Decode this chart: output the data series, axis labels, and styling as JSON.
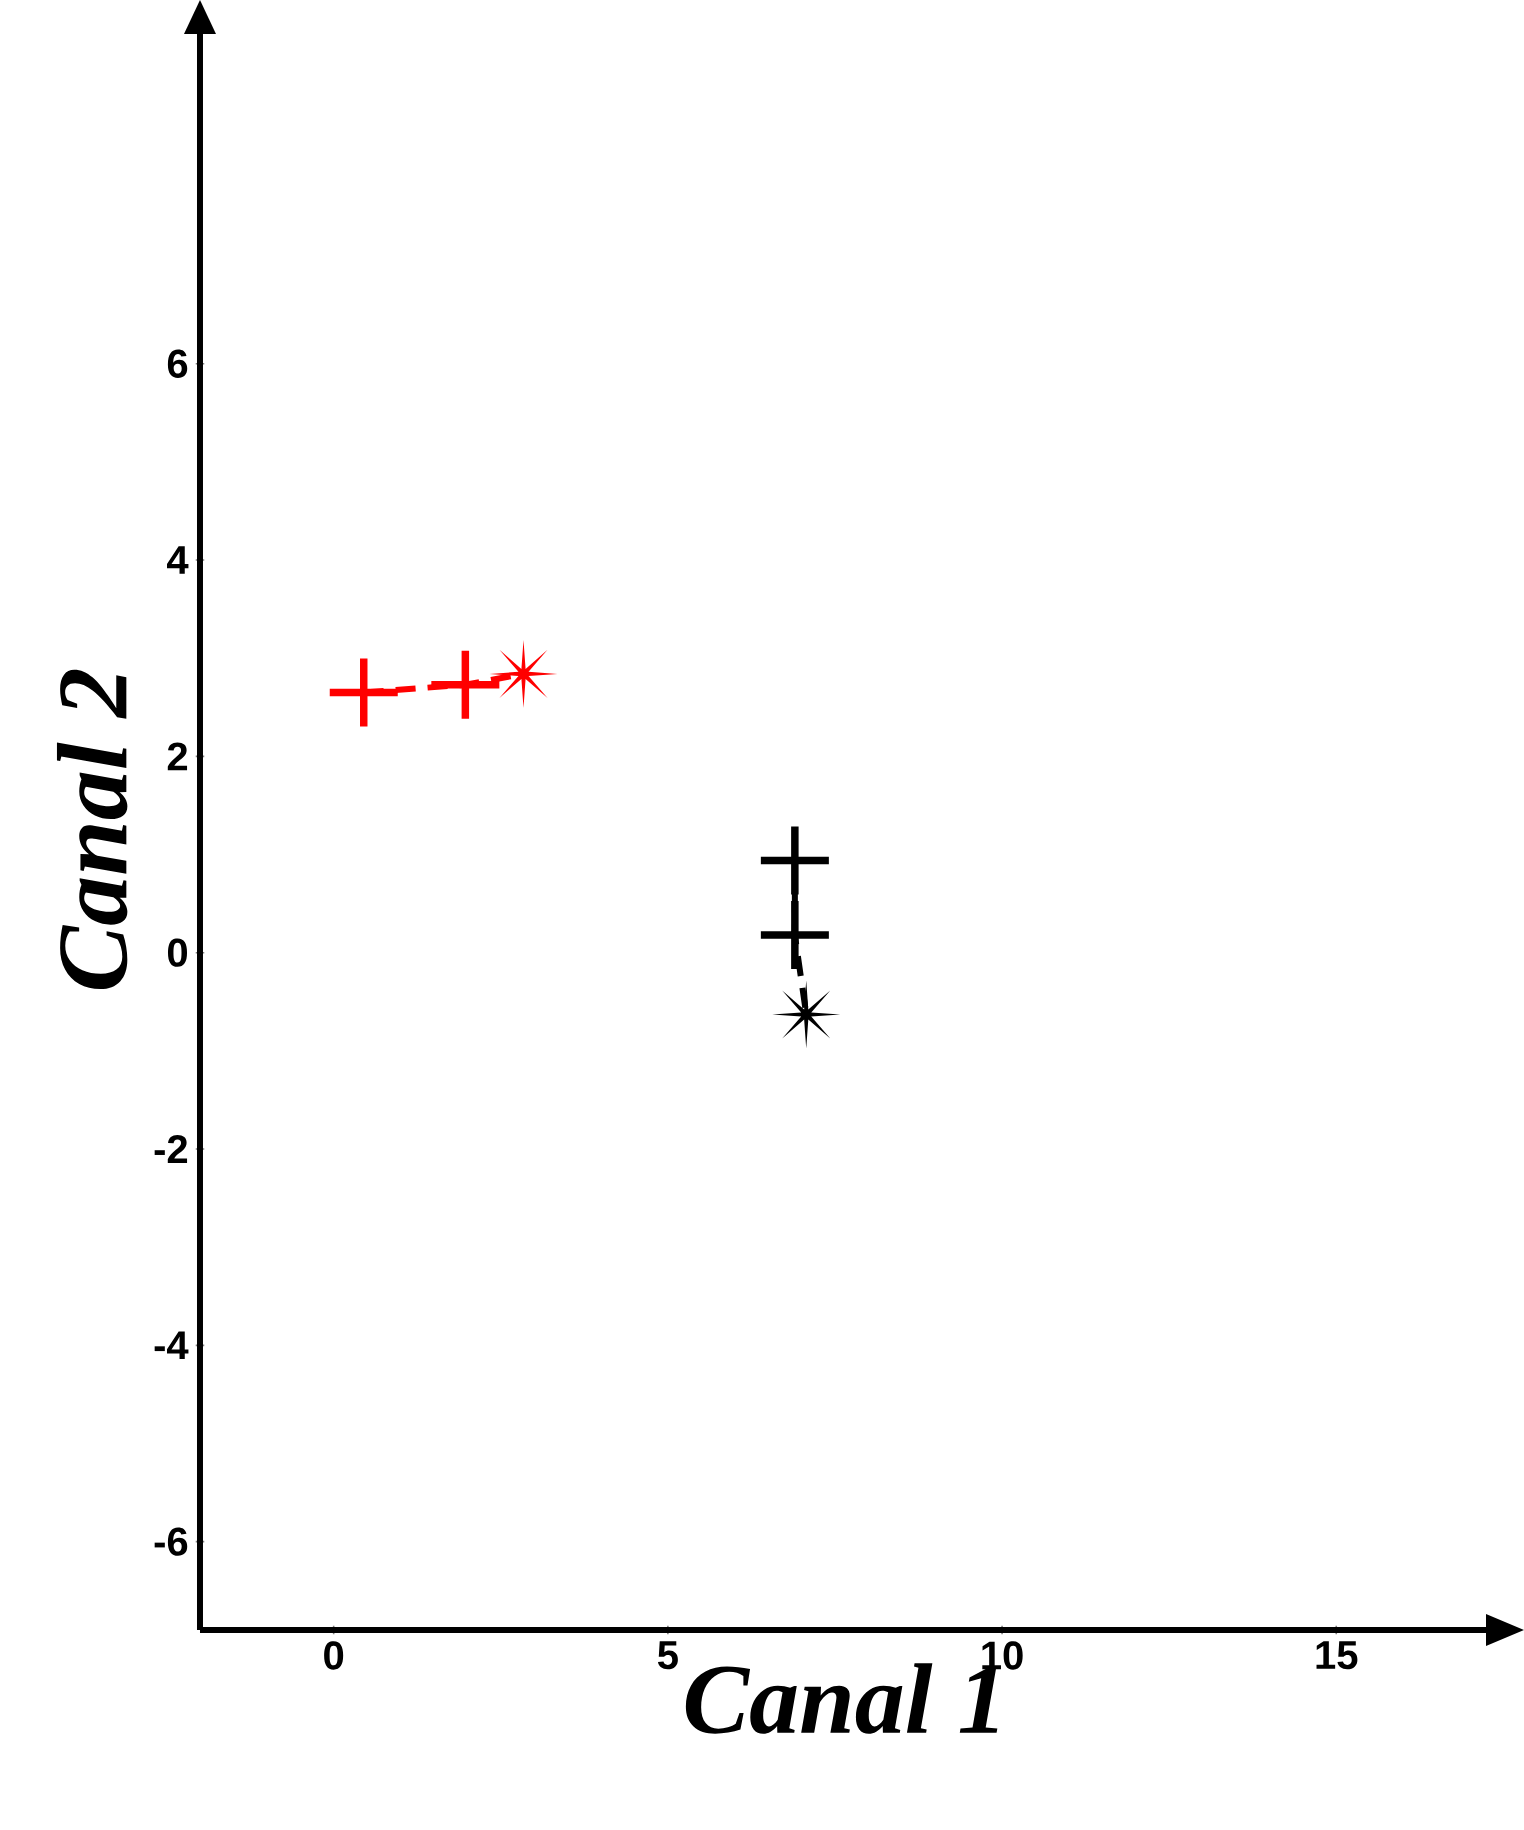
{
  "chart_data": {
    "type": "scatter",
    "xlabel": "Canal 1",
    "ylabel": "Canal 2",
    "xlim": [
      -2,
      17.3
    ],
    "ylim": [
      -6.9,
      9.4
    ],
    "xticks": [
      0,
      5,
      10,
      15
    ],
    "yticks": [
      -6,
      -4,
      -2,
      0,
      2,
      4,
      6
    ],
    "series": [
      {
        "type": "line",
        "color": "#ff0000",
        "marker": "none",
        "line_style": "dashed",
        "x": [
          0.45,
          1.97,
          2.84
        ],
        "values": [
          2.65,
          2.73,
          2.84
        ]
      },
      {
        "color": "#ff0000",
        "marker": "cross",
        "x": [
          0.45,
          1.97
        ],
        "values": [
          2.65,
          2.73
        ]
      },
      {
        "color": "#ff0000",
        "marker": "star",
        "x": [
          2.84
        ],
        "values": [
          2.84
        ]
      },
      {
        "type": "line",
        "color": "#000000",
        "marker": "none",
        "line_style": "dashed",
        "x": [
          6.9,
          6.9,
          7.07
        ],
        "values": [
          0.94,
          0.18,
          -0.63
        ]
      },
      {
        "color": "#000000",
        "marker": "cross",
        "x": [
          6.9,
          6.9
        ],
        "values": [
          0.94,
          0.18
        ]
      },
      {
        "color": "#000000",
        "marker": "star",
        "x": [
          7.07
        ],
        "values": [
          -0.63
        ]
      }
    ]
  }
}
